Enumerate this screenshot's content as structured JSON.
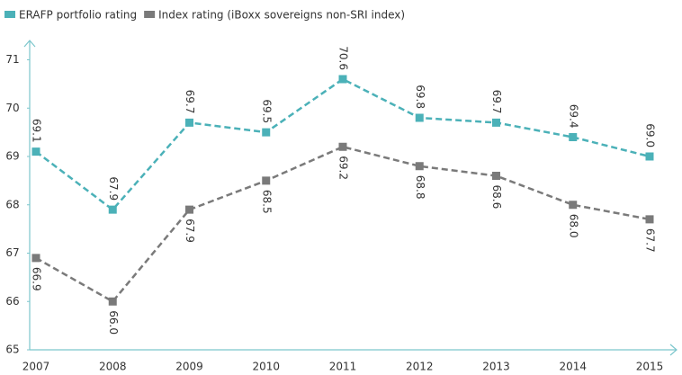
{
  "chart_data": {
    "type": "line",
    "categories": [
      "2007",
      "2008",
      "2009",
      "2010",
      "2011",
      "2012",
      "2013",
      "2014",
      "2015"
    ],
    "series": [
      {
        "name": "ERAFP portfolio rating",
        "color": "#4bb1b8",
        "values": [
          69.1,
          67.9,
          69.7,
          69.5,
          70.6,
          69.8,
          69.7,
          69.4,
          69.0
        ],
        "value_labels": [
          "69.1",
          "67.9",
          "69.7",
          "69.5",
          "70.6",
          "69.8",
          "69.7",
          "69.4",
          "69.0"
        ]
      },
      {
        "name": "Index rating (iBoxx sovereigns non-SRI index)",
        "color": "#7a7a7a",
        "values": [
          66.9,
          66.0,
          67.9,
          68.5,
          69.2,
          68.8,
          68.6,
          68.0,
          67.7
        ],
        "value_labels": [
          "66.9",
          "66.0",
          "67.9",
          "68.5",
          "69.2",
          "68.8",
          "68.6",
          "68.0",
          "67.7"
        ]
      }
    ],
    "ylim": [
      65,
      71.4
    ],
    "yticks": [
      65,
      66,
      67,
      68,
      69,
      70,
      71
    ],
    "grid": false
  }
}
